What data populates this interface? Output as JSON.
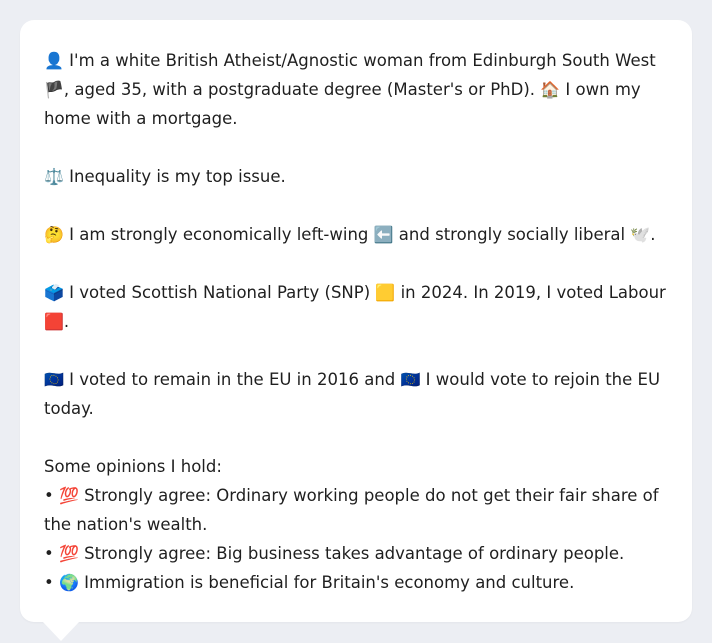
{
  "profile": {
    "intro": {
      "icon": "👤",
      "text1": " I'm a white British Atheist/Agnostic woman from Edinburgh South West ",
      "flag": "🏴",
      "text2": ", aged 35, with a postgraduate degree (Master's or PhD). ",
      "home_icon": "🏠",
      "text3": " I own my home with a mortgage."
    },
    "issue": {
      "icon": "⚖️",
      "text": " Inequality is my top issue."
    },
    "ideology": {
      "icon": "🤔",
      "text1": " I am strongly economically left-wing ",
      "left_icon": "⬅️",
      "text2": " and strongly socially liberal ",
      "dove_icon": "🕊️",
      "text3": "."
    },
    "vote": {
      "icon": "🗳️",
      "text1": " I voted Scottish National Party (SNP) ",
      "snp_icon": "🟨",
      "text2": " in 2024. In 2019, I voted Labour ",
      "labour_icon": "🟥",
      "text3": "."
    },
    "eu": {
      "icon": "🇪🇺",
      "text1": " I voted to remain in the EU in 2016 and ",
      "icon2": "🇪🇺",
      "text2": " I would vote to rejoin the EU today."
    },
    "opinions": {
      "heading": "Some opinions I hold:",
      "items": [
        {
          "bullet": "•",
          "icon": "💯",
          "text": " Strongly agree: Ordinary working people do not get their fair share of the nation's wealth."
        },
        {
          "bullet": "•",
          "icon": "💯",
          "text": " Strongly agree: Big business takes advantage of ordinary people."
        },
        {
          "bullet": "•",
          "icon": "🌍",
          "text": " Immigration is beneficial for Britain's economy and culture."
        }
      ]
    }
  }
}
